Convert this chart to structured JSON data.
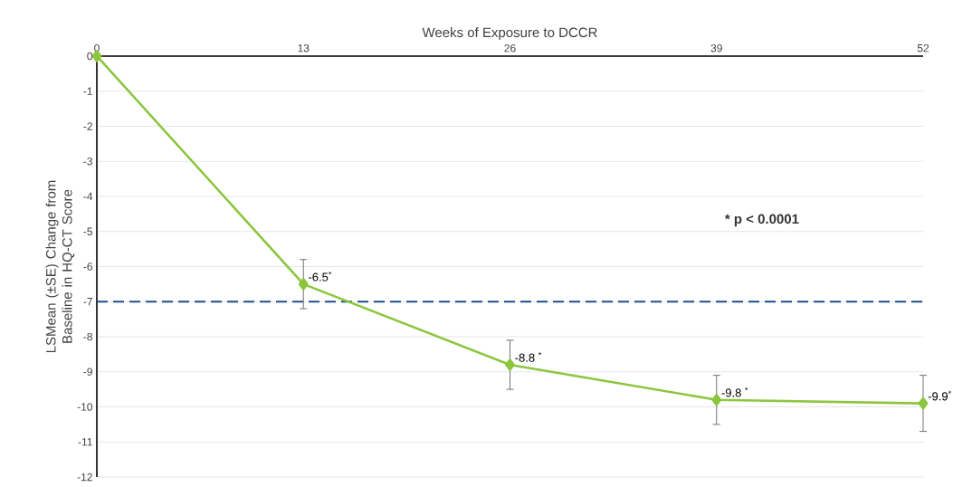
{
  "chart_data": {
    "type": "line",
    "xlabel": "Weeks of Exposure to DCCR",
    "ylabel": "LSMean (±SE) Change from Baseline in HQ-CT Score",
    "x": [
      0,
      13,
      26,
      39,
      52
    ],
    "series": [
      {
        "color": "#8cc63f",
        "values": [
          0,
          -6.5,
          -8.8,
          -9.8,
          -9.9
        ],
        "errors": [
          null,
          0.7,
          0.7,
          0.7,
          0.8
        ],
        "value_labels": [
          null,
          "-6.5$^{*}$",
          "-8.8 $^{*}$",
          "-9.8 $^{*}$",
          "-9.9$^{*}$"
        ]
      }
    ],
    "xlim": [
      0,
      52
    ],
    "xticks": [
      0,
      13,
      26,
      39,
      52
    ],
    "ylim": [
      -12,
      0
    ],
    "yticks": [
      -12,
      -11,
      -10,
      -9,
      -8,
      -7,
      -6,
      -5,
      -4,
      -3,
      -2,
      -1,
      0
    ],
    "grid": "y",
    "marker": "diamond",
    "line_style": "solid",
    "ref_lines": [
      {
        "axis": "y",
        "value": -7,
        "color": "#1f4e8c",
        "line_style": "dashed"
      }
    ],
    "annotations": [
      "* p < 0.0001"
    ]
  }
}
